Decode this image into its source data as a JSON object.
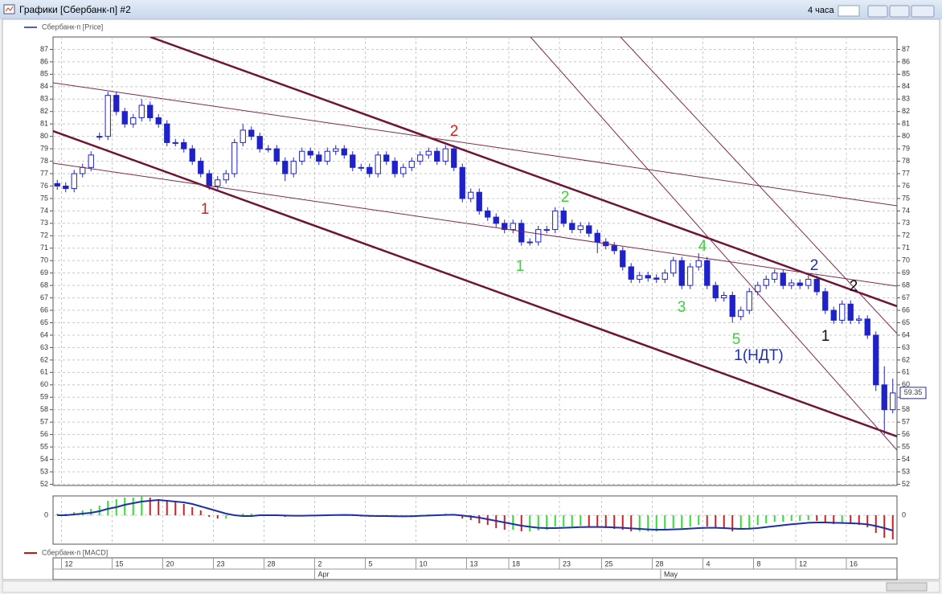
{
  "window": {
    "title": "Графики [Сбербанк-п] #2",
    "timeframe": "4 часа"
  },
  "chart_data": {
    "type": "candlestick",
    "name": "Сбербанк-п [Price]",
    "line_color": "#1a2a9a",
    "up_color": "#ffffff",
    "down_color": "#1f22c8",
    "outline_color": "#1f22c8",
    "grid": true,
    "categories": [
      null,
      "12",
      null,
      null,
      null,
      null,
      null,
      "15",
      null,
      null,
      null,
      null,
      null,
      "20",
      null,
      null,
      null,
      null,
      null,
      "23",
      null,
      null,
      null,
      null,
      null,
      "28",
      null,
      null,
      null,
      null,
      null,
      "2",
      null,
      null,
      null,
      null,
      null,
      "5",
      null,
      null,
      null,
      null,
      null,
      "10",
      null,
      null,
      null,
      null,
      null,
      "13",
      null,
      null,
      null,
      null,
      "18",
      null,
      null,
      null,
      null,
      null,
      "23",
      null,
      null,
      null,
      null,
      "25",
      null,
      null,
      null,
      null,
      null,
      "28",
      null,
      null,
      null,
      null,
      null,
      "4",
      null,
      null,
      null,
      null,
      null,
      "8",
      null,
      null,
      null,
      null,
      "12",
      null,
      null,
      null,
      null,
      null,
      "16",
      null,
      null,
      null,
      null,
      null
    ],
    "months": [
      null,
      null,
      null,
      null,
      null,
      null,
      null,
      null,
      null,
      null,
      null,
      null,
      null,
      null,
      null,
      null,
      null,
      null,
      null,
      null,
      null,
      null,
      null,
      null,
      null,
      null,
      null,
      null,
      null,
      null,
      null,
      "Apr",
      null,
      null,
      null,
      null,
      null,
      null,
      null,
      null,
      null,
      null,
      null,
      null,
      null,
      null,
      null,
      null,
      null,
      null,
      null,
      null,
      null,
      null,
      null,
      null,
      null,
      null,
      null,
      null,
      null,
      null,
      null,
      null,
      null,
      null,
      null,
      null,
      null,
      null,
      null,
      null,
      "May",
      null,
      null,
      null,
      null,
      null,
      null,
      null,
      null,
      null,
      null,
      null,
      null,
      null,
      null,
      null,
      null,
      null,
      null,
      null,
      null,
      null,
      null,
      null,
      null,
      null,
      null,
      null
    ],
    "open": [
      76.2,
      76,
      75.8,
      77,
      77.5,
      80,
      80,
      83.3,
      82,
      81,
      81.5,
      82.5,
      81.5,
      81,
      79.5,
      79.5,
      79,
      78,
      77,
      76,
      76.5,
      77,
      79.5,
      80.5,
      80,
      79,
      79,
      78,
      77,
      78,
      78.8,
      78.5,
      78,
      78.8,
      79,
      78.5,
      77.5,
      77.5,
      77,
      78.5,
      78,
      77,
      77.5,
      78,
      78.5,
      78.8,
      78,
      79,
      77.5,
      75,
      75.5,
      74,
      73.5,
      73,
      72.5,
      73,
      71.5,
      71.5,
      72.5,
      72.5,
      74,
      73,
      72.5,
      72.8,
      72.2,
      71.5,
      71.2,
      70.8,
      69.5,
      68.5,
      68.8,
      68.6,
      68.5,
      69,
      70,
      68,
      69.5,
      70,
      68,
      67,
      67.2,
      65.5,
      66,
      67.5,
      68,
      68.5,
      69,
      68,
      68.2,
      68,
      68.5,
      67.5,
      66,
      65.2,
      66.5,
      65.2,
      65.3,
      64,
      60,
      58
    ],
    "high": [
      76.5,
      76.3,
      77.3,
      77.8,
      78.8,
      80.3,
      83.6,
      83.6,
      82.3,
      81.8,
      83,
      82.8,
      81.8,
      81.3,
      79.8,
      79.8,
      79.3,
      78.3,
      77.3,
      76.8,
      77.3,
      79.8,
      81,
      80.8,
      80.3,
      79.3,
      79.3,
      78.3,
      78.3,
      79.1,
      79.1,
      78.8,
      79.1,
      79.3,
      79.3,
      78.8,
      77.8,
      77.8,
      78.8,
      78.8,
      78.3,
      77.8,
      78.3,
      78.8,
      79.1,
      79.1,
      79.3,
      79.3,
      77.8,
      75.8,
      75.8,
      74.3,
      73.8,
      73.3,
      73.3,
      73.3,
      71.8,
      72.8,
      72.8,
      74.3,
      74.3,
      73.3,
      73.1,
      73.1,
      72.5,
      71.8,
      71.5,
      71.1,
      69.8,
      69.1,
      69.1,
      68.9,
      69.3,
      70.3,
      70.3,
      69.8,
      70.6,
      70.3,
      68.3,
      67.5,
      67.5,
      66.3,
      67.8,
      68.3,
      68.8,
      69.3,
      69.3,
      68.5,
      68.5,
      68.8,
      68.8,
      67.8,
      66.3,
      66.8,
      66.8,
      65.6,
      65.6,
      64.3,
      61.5,
      60.5
    ],
    "low": [
      75.7,
      75.5,
      75.5,
      76.7,
      77.2,
      79.7,
      79.7,
      81.7,
      80.7,
      80.7,
      81.2,
      81.2,
      80.7,
      79.2,
      79.2,
      78.7,
      77.7,
      76.7,
      75.7,
      75.7,
      76.2,
      76.7,
      79.2,
      79.7,
      78.7,
      78.7,
      77.7,
      76.4,
      76.7,
      77.7,
      78.2,
      77.7,
      77.7,
      78.5,
      78.2,
      77.2,
      77.2,
      76.7,
      76.7,
      77.7,
      76.7,
      76.7,
      77.2,
      77.7,
      78.2,
      77.7,
      77.7,
      77.2,
      74.7,
      74.7,
      73.7,
      73.2,
      72.7,
      72.2,
      72.2,
      71.2,
      71.2,
      71.2,
      72.2,
      72.2,
      72.7,
      72.2,
      72.2,
      71.9,
      70.6,
      70.9,
      70.5,
      69.2,
      68.2,
      68.2,
      68.3,
      68.2,
      68.2,
      68.7,
      67.7,
      67.7,
      69.2,
      67.7,
      66.7,
      66.7,
      65,
      65.2,
      65.7,
      67.2,
      67.7,
      68.2,
      67.7,
      67.7,
      67.7,
      67.7,
      67.2,
      65.7,
      64.9,
      64.9,
      64.9,
      64.9,
      63.7,
      59.5,
      56,
      57.7
    ],
    "close": [
      76,
      75.8,
      77,
      77.5,
      78.5,
      80,
      83.3,
      82,
      81,
      81.5,
      82.5,
      81.5,
      81,
      79.5,
      79.5,
      79,
      78,
      77,
      76,
      76.5,
      77,
      79.5,
      80.5,
      80,
      79,
      79,
      78,
      77,
      78,
      78.8,
      78.5,
      78,
      78.8,
      79,
      78.5,
      77.5,
      77.5,
      77,
      78.5,
      78,
      77,
      77.5,
      78,
      78.5,
      78.8,
      78,
      79,
      77.5,
      75,
      75.5,
      74,
      73.5,
      73,
      72.5,
      73,
      71.5,
      71.5,
      72.5,
      72.5,
      74,
      73,
      72.5,
      72.8,
      72.2,
      71.5,
      71.2,
      70.8,
      69.5,
      68.5,
      68.8,
      68.6,
      68.5,
      69,
      70,
      68,
      69.5,
      70,
      68,
      67,
      67.2,
      65.5,
      66,
      67.5,
      68,
      68.5,
      69,
      68,
      68.2,
      68,
      68.5,
      67.5,
      66,
      65.2,
      66.5,
      65.2,
      65.3,
      64,
      60,
      58,
      59.35
    ],
    "ylim": [
      51.9,
      88
    ],
    "yticks": [
      52,
      53,
      54,
      55,
      56,
      57,
      58,
      59,
      60,
      61,
      62,
      63,
      64,
      65,
      66,
      67,
      68,
      69,
      70,
      71,
      72,
      73,
      74,
      75,
      76,
      77,
      78,
      79,
      80,
      81,
      82,
      83,
      84,
      85,
      86,
      87
    ],
    "annotations": [
      {
        "text": "2",
        "color": "#d42020"
      },
      {
        "text": "1",
        "color": "#d42020"
      },
      {
        "text": "1",
        "color": "#3cd23c"
      },
      {
        "text": "2",
        "color": "#3cd23c"
      },
      {
        "text": "3",
        "color": "#3cd23c"
      },
      {
        "text": "4",
        "color": "#3cd23c"
      },
      {
        "text": "5",
        "color": "#3cd23c"
      },
      {
        "text": "1(НДТ)",
        "color": "#2030b0"
      },
      {
        "text": "2",
        "color": "#2030b0"
      },
      {
        "text": "2",
        "color": "#111111"
      },
      {
        "text": "1",
        "color": "#111111"
      }
    ],
    "macd": {
      "type": "macd",
      "name": "Сбербанк-п [MACD]",
      "legend_color": "#cc1111",
      "rise_color": "#33dd33",
      "fall_color": "#cc2222",
      "signal_color": "#1f2fa8",
      "ylim": [
        -1.8,
        1.2
      ],
      "yticks": [
        0
      ],
      "values": [
        0.1,
        0.1,
        0.2,
        0.3,
        0.4,
        0.6,
        0.9,
        1.0,
        1.1,
        1.1,
        1.2,
        1.1,
        1.0,
        0.9,
        0.8,
        0.7,
        0.5,
        0.3,
        -0.1,
        -0.2,
        -0.2,
        0,
        0.1,
        0.1,
        0.05,
        0,
        -0.05,
        -0.1,
        -0.05,
        0,
        0,
        0,
        0.02,
        0.05,
        0.03,
        -0.05,
        -0.08,
        -0.1,
        -0.05,
        -0.05,
        -0.1,
        -0.1,
        -0.05,
        0,
        0.05,
        0.05,
        0.1,
        0.05,
        -0.2,
        -0.3,
        -0.5,
        -0.6,
        -0.8,
        -0.9,
        -0.9,
        -1.0,
        -1.0,
        -0.95,
        -0.9,
        -0.7,
        -0.7,
        -0.7,
        -0.65,
        -0.7,
        -0.75,
        -0.8,
        -0.85,
        -0.9,
        -1.0,
        -1.0,
        -1.0,
        -1.0,
        -0.9,
        -0.8,
        -0.8,
        -0.7,
        -0.6,
        -0.7,
        -0.8,
        -0.85,
        -1.0,
        -0.9,
        -0.8,
        -0.6,
        -0.5,
        -0.4,
        -0.4,
        -0.35,
        -0.35,
        -0.3,
        -0.35,
        -0.45,
        -0.55,
        -0.5,
        -0.55,
        -0.6,
        -0.75,
        -1.1,
        -1.4,
        -1.5
      ],
      "signal": [
        0,
        0,
        0.05,
        0.1,
        0.15,
        0.25,
        0.4,
        0.5,
        0.65,
        0.75,
        0.85,
        0.9,
        0.95,
        0.9,
        0.85,
        0.8,
        0.7,
        0.55,
        0.4,
        0.25,
        0.1,
        0,
        -0.05,
        -0.05,
        0,
        0,
        0,
        -0.02,
        -0.03,
        -0.03,
        -0.02,
        -0.01,
        0,
        0.01,
        0.02,
        0.01,
        -0.02,
        -0.04,
        -0.05,
        -0.05,
        -0.06,
        -0.07,
        -0.06,
        -0.04,
        -0.02,
        0,
        0.02,
        0.03,
        -0.02,
        -0.08,
        -0.15,
        -0.25,
        -0.35,
        -0.45,
        -0.55,
        -0.65,
        -0.72,
        -0.78,
        -0.8,
        -0.8,
        -0.78,
        -0.76,
        -0.74,
        -0.73,
        -0.73,
        -0.74,
        -0.76,
        -0.78,
        -0.82,
        -0.85,
        -0.88,
        -0.9,
        -0.9,
        -0.88,
        -0.86,
        -0.83,
        -0.8,
        -0.78,
        -0.78,
        -0.8,
        -0.83,
        -0.85,
        -0.84,
        -0.8,
        -0.74,
        -0.68,
        -0.62,
        -0.56,
        -0.52,
        -0.47,
        -0.45,
        -0.45,
        -0.47,
        -0.48,
        -0.5,
        -0.52,
        -0.57,
        -0.67,
        -0.8,
        -0.95
      ]
    }
  }
}
